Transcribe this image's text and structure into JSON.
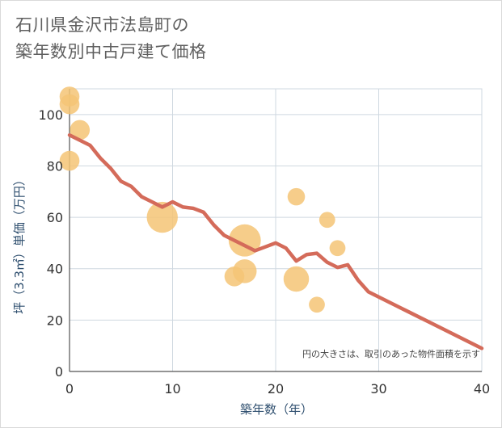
{
  "chart_data": {
    "type": "scatter+line",
    "title_lines": [
      "石川県金沢市法島町の",
      "築年数別中古戸建て価格"
    ],
    "xlabel": "築年数（年）",
    "ylabel": "坪（3.3㎡）単価（万円）",
    "xlim": [
      0,
      40
    ],
    "ylim": [
      0,
      110
    ],
    "x_ticks": [
      "0",
      "10",
      "20",
      "30",
      "40"
    ],
    "y_ticks": [
      "0",
      "20",
      "40",
      "60",
      "80",
      "100"
    ],
    "x_tick_values": [
      0,
      10,
      20,
      30,
      40
    ],
    "y_tick_values": [
      0,
      20,
      40,
      60,
      80,
      100
    ],
    "note": "円の大きさは、取引のあった物件面積を示す",
    "bubble_color": "#f5c476",
    "line_color": "#d46b5a",
    "bubbles": [
      {
        "x": 0,
        "y": 107,
        "size": 3
      },
      {
        "x": 0,
        "y": 104,
        "size": 3
      },
      {
        "x": 0,
        "y": 82,
        "size": 3
      },
      {
        "x": 1,
        "y": 94,
        "size": 3
      },
      {
        "x": 9,
        "y": 60,
        "size": 10
      },
      {
        "x": 16,
        "y": 37,
        "size": 3
      },
      {
        "x": 17,
        "y": 51,
        "size": 11
      },
      {
        "x": 17,
        "y": 39,
        "size": 5
      },
      {
        "x": 22,
        "y": 68,
        "size": 2
      },
      {
        "x": 22,
        "y": 36,
        "size": 6
      },
      {
        "x": 24,
        "y": 26,
        "size": 1.5
      },
      {
        "x": 25,
        "y": 59,
        "size": 1.5
      },
      {
        "x": 26,
        "y": 48,
        "size": 1.5
      }
    ],
    "trend": {
      "x": [
        0,
        1,
        2,
        3,
        4,
        5,
        6,
        7,
        8,
        9,
        10,
        11,
        12,
        13,
        14,
        15,
        16,
        17,
        18,
        19,
        20,
        21,
        22,
        23,
        24,
        25,
        26,
        27,
        28,
        29,
        30,
        31,
        32,
        33,
        34,
        35,
        36,
        37,
        38,
        39,
        40
      ],
      "y": [
        92,
        90,
        88,
        83,
        79,
        74,
        72,
        68,
        66,
        64,
        66,
        64,
        63.5,
        62,
        57,
        53,
        51,
        49,
        47,
        48.5,
        50,
        48,
        43,
        45.5,
        46,
        42.5,
        40.5,
        41.5,
        35.5,
        31,
        29,
        27,
        25,
        23,
        21,
        19,
        17,
        15,
        13,
        11,
        9
      ]
    }
  }
}
